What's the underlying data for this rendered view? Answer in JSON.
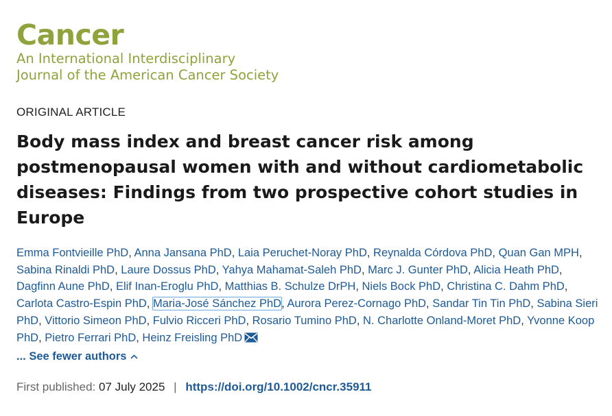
{
  "journal": {
    "name": "Cancer",
    "tagline_line1": "An International Interdisciplinary",
    "tagline_line2": "Journal of the American Cancer Society"
  },
  "article": {
    "type": "ORIGINAL ARTICLE",
    "title": "Body mass index and breast cancer risk among postmenopausal women with and without cardiometabolic diseases: Findings from two prospective cohort studies in Europe"
  },
  "authors": [
    "Emma Fontvieille PhD",
    "Anna Jansana PhD",
    "Laia Peruchet-Noray PhD",
    "Reynalda Córdova PhD",
    "Quan Gan MPH",
    "Sabina Rinaldi PhD",
    "Laure Dossus PhD",
    "Yahya Mahamat-Saleh PhD",
    "Marc J. Gunter PhD",
    "Alicia Heath PhD",
    "Dagfinn Aune PhD",
    "Elif Inan-Eroglu PhD",
    "Matthias B. Schulze DrPH",
    "Niels Bock PhD",
    "Christina C. Dahm PhD",
    "Carlota Castro-Espin PhD",
    "Maria-José Sánchez PhD",
    "Aurora Perez-Cornago PhD",
    "Sandar Tin Tin PhD",
    "Sabina Sieri PhD",
    "Vittorio Simeon PhD",
    "Fulvio Ricceri PhD",
    "Rosario Tumino PhD",
    "N. Charlotte Onland-Moret PhD",
    "Yvonne Koop PhD",
    "Pietro Ferrari PhD",
    "Heinz Freisling PhD"
  ],
  "authors_toggle": {
    "label": "... See fewer authors",
    "icon": "chevron-up-icon"
  },
  "publication": {
    "first_published_label": "First published:",
    "first_published_date": "07 July 2025",
    "divider": "|",
    "doi": "https://doi.org/10.1002/cncr.35911"
  },
  "colors": {
    "journal_green": "#8ea33b",
    "link_blue": "#1d5a96",
    "focus_outline": "#6aa8e0"
  }
}
